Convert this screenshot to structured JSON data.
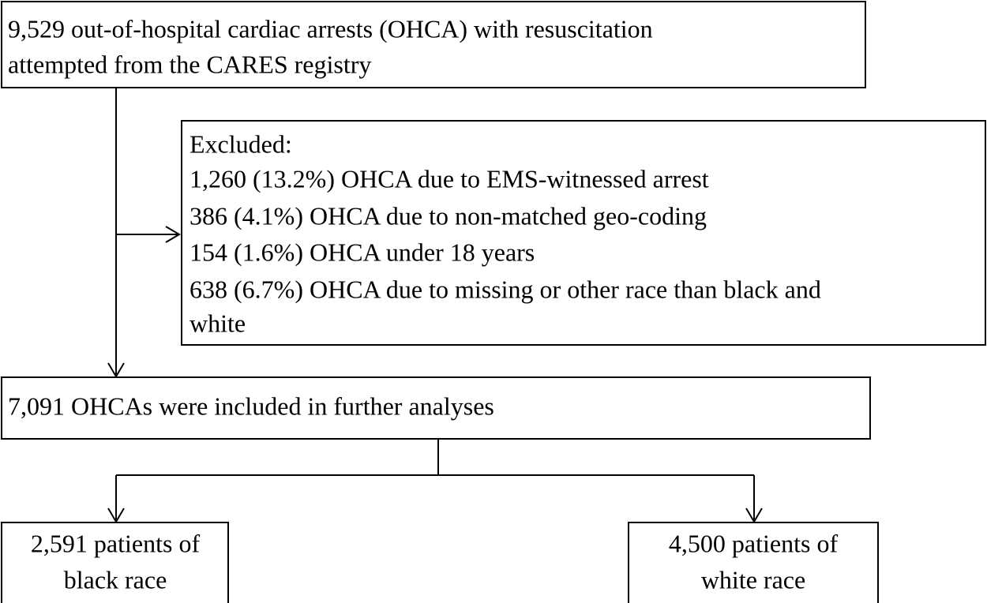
{
  "nodes": [
    {
      "lines": [
        "9,529 out-of-hospital cardiac arrests (OHCA) with resuscitation",
        "attempted from the CARES registry"
      ]
    },
    {
      "lines": [
        "Excluded:",
        "1,260 (13.2%) OHCA due to EMS-witnessed arrest",
        "386 (4.1%) OHCA due to non-matched geo-coding",
        "154 (1.6%) OHCA under 18 years",
        "638 (6.7%) OHCA due to missing or other race than black and",
        "white"
      ]
    },
    {
      "lines": [
        "7,091 OHCAs were included in further analyses"
      ]
    },
    {
      "lines": [
        "2,591 patients of",
        "black race"
      ]
    },
    {
      "lines": [
        "4,500 patients of",
        "white race"
      ]
    }
  ]
}
